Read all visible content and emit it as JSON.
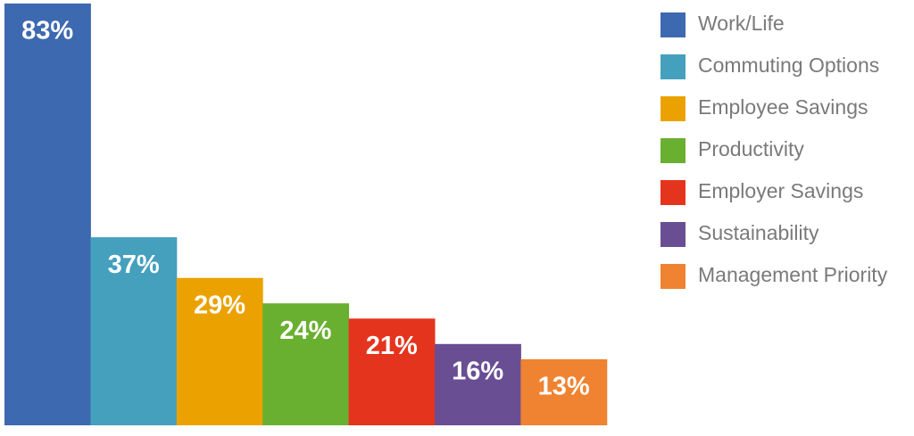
{
  "chart_data": {
    "type": "bar",
    "categories": [
      "Work/Life",
      "Commuting Options",
      "Employee Savings",
      "Productivity",
      "Employer Savings",
      "Sustainability",
      "Management Priority"
    ],
    "values": [
      83,
      37,
      29,
      24,
      21,
      16,
      13
    ],
    "value_labels": [
      "83%",
      "37%",
      "29%",
      "24%",
      "21%",
      "16%",
      "13%"
    ],
    "colors": [
      "#3d69b0",
      "#44a0bd",
      "#eba200",
      "#6ab030",
      "#e5341d",
      "#6a4e94",
      "#ef8331"
    ],
    "legend": "right"
  }
}
